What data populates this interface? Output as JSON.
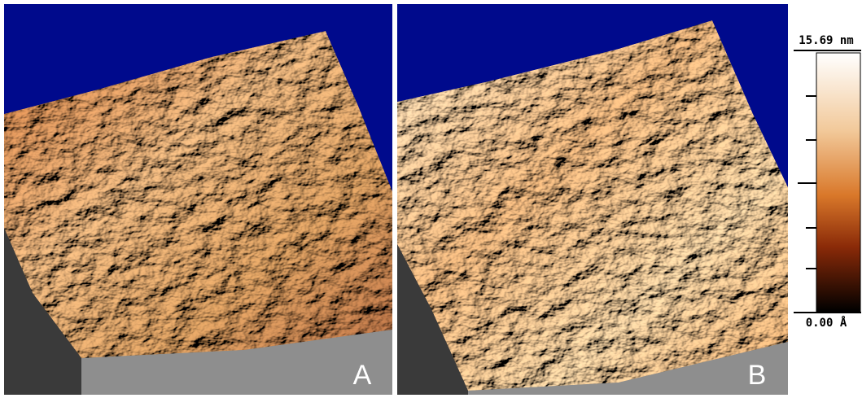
{
  "panels": [
    {
      "label": "A"
    },
    {
      "label": "B"
    }
  ],
  "colorbar": {
    "max_label": "15.69 nm",
    "min_label": "0.00 Å"
  }
}
